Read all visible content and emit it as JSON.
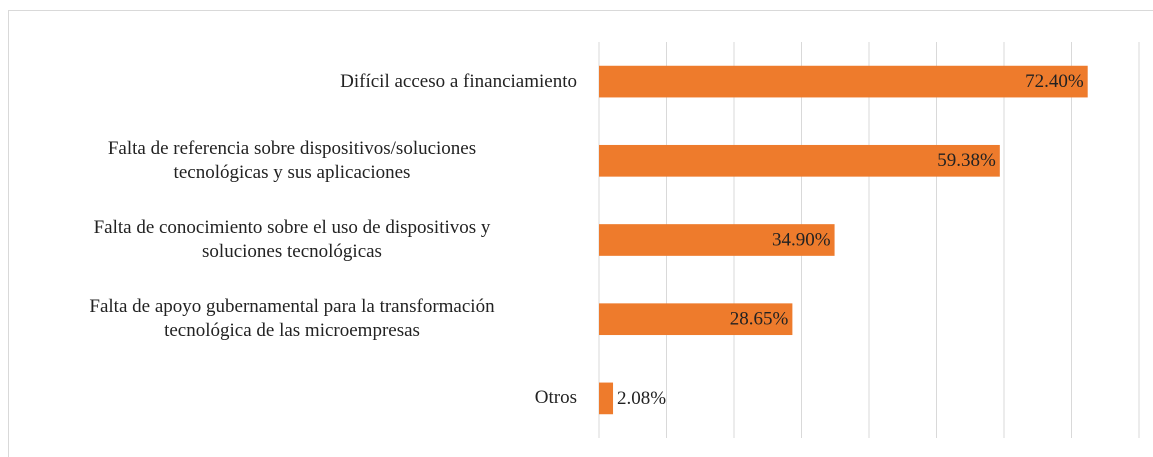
{
  "chart_data": {
    "type": "barh",
    "categories": [
      "Difícil acceso a financiamiento",
      "Falta de referencia sobre dispositivos/soluciones\ntecnológicas y sus aplicaciones",
      "Falta de conocimiento sobre el uso de dispositivos y\nsoluciones tecnológicas",
      "Falta de apoyo gubernamental para la transformación\ntecnológica de las microempresas",
      "Otros"
    ],
    "values": [
      72.4,
      59.38,
      34.9,
      28.65,
      2.08
    ],
    "value_labels": [
      "72.40%",
      "59.38%",
      "34.90%",
      "28.65%",
      "2.08%"
    ],
    "color": "#ee7b2c",
    "xlim": [
      0,
      80
    ],
    "xticks": [
      0,
      10,
      20,
      30,
      40,
      50,
      60,
      70,
      80
    ],
    "grid": true
  }
}
